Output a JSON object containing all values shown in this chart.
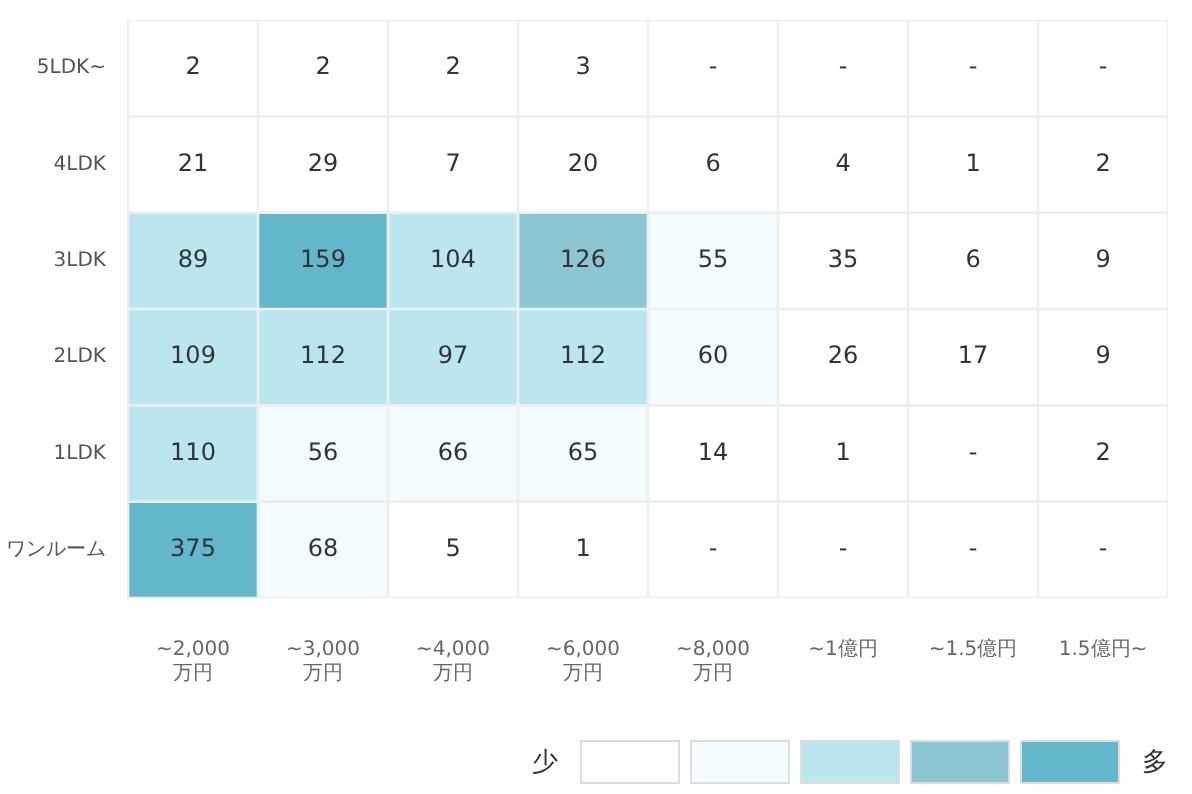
{
  "chart_data": {
    "type": "heatmap",
    "categories": [
      "~2,000 万円",
      "~3,000 万円",
      "~4,000 万円",
      "~6,000 万円",
      "~8,000 万円",
      "~1億円",
      "~1.5億円",
      "1.5億円~"
    ],
    "y_categories": [
      "5LDK~",
      "4LDK",
      "3LDK",
      "2LDK",
      "1LDK",
      "ワンルーム"
    ],
    "cells": [
      [
        2,
        2,
        2,
        3,
        null,
        null,
        null,
        null
      ],
      [
        21,
        29,
        7,
        20,
        6,
        4,
        1,
        2
      ],
      [
        89,
        159,
        104,
        126,
        55,
        35,
        6,
        9
      ],
      [
        109,
        112,
        97,
        112,
        60,
        26,
        17,
        9
      ],
      [
        110,
        56,
        66,
        65,
        14,
        1,
        null,
        2
      ],
      [
        375,
        68,
        5,
        1,
        null,
        null,
        null,
        null
      ]
    ],
    "cell_labels": [
      [
        "2",
        "2",
        "2",
        "3",
        "-",
        "-",
        "-",
        "-"
      ],
      [
        "21",
        "29",
        "7",
        "20",
        "6",
        "4",
        "1",
        "2"
      ],
      [
        "89",
        "159",
        "104",
        "126",
        "55",
        "35",
        "6",
        "9"
      ],
      [
        "109",
        "112",
        "97",
        "112",
        "60",
        "26",
        "17",
        "9"
      ],
      [
        "110",
        "56",
        "66",
        "65",
        "14",
        "1",
        "-",
        "2"
      ],
      [
        "375",
        "68",
        "5",
        "1",
        "-",
        "-",
        "-",
        "-"
      ]
    ],
    "colors": [
      [
        "#ffffff",
        "#ffffff",
        "#ffffff",
        "#ffffff",
        "#ffffff",
        "#ffffff",
        "#ffffff",
        "#ffffff"
      ],
      [
        "#ffffff",
        "#ffffff",
        "#ffffff",
        "#ffffff",
        "#ffffff",
        "#ffffff",
        "#ffffff",
        "#ffffff"
      ],
      [
        "#bce6ef",
        "#62b7cb",
        "#bce6ef",
        "#8cc6d3",
        "#f2fbfd",
        "#ffffff",
        "#ffffff",
        "#ffffff"
      ],
      [
        "#bce6ef",
        "#bce6ef",
        "#bce6ef",
        "#bce6ef",
        "#f2fbfd",
        "#ffffff",
        "#ffffff",
        "#ffffff"
      ],
      [
        "#bce6ef",
        "#f2fbfd",
        "#f2fbfd",
        "#f2fbfd",
        "#ffffff",
        "#ffffff",
        "#ffffff",
        "#ffffff"
      ],
      [
        "#62b7cb",
        "#f2fbfd",
        "#ffffff",
        "#ffffff",
        "#ffffff",
        "#ffffff",
        "#ffffff",
        "#ffffff"
      ]
    ],
    "annotations": [
      "少",
      "多"
    ]
  }
}
